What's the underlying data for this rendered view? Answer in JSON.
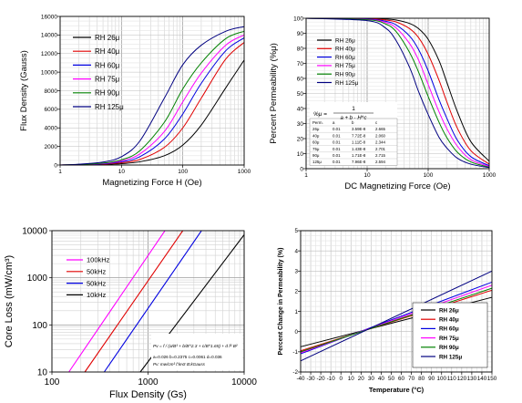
{
  "chart_data": [
    {
      "type": "line",
      "xlabel": "Magnetizing Force H (Oe)",
      "ylabel": "Flux Density (Gauss)",
      "xscale": "log",
      "xlim": [
        1,
        1000
      ],
      "ylim": [
        0,
        16000
      ],
      "xticks": [
        "1",
        "10",
        "100",
        "1000"
      ],
      "yticks": [
        "0",
        "2000",
        "4000",
        "6000",
        "8000",
        "10000",
        "12000",
        "14000",
        "16000"
      ],
      "grid": true,
      "legend_position": "top-left",
      "x": [
        1,
        2,
        5,
        10,
        20,
        50,
        100,
        200,
        500,
        1000
      ],
      "series": [
        {
          "name": "RH 26μ",
          "color": "#000000",
          "values": [
            0,
            20,
            60,
            150,
            350,
            1000,
            2150,
            4300,
            8300,
            11300
          ]
        },
        {
          "name": "RH 40μ",
          "color": "#e00000",
          "values": [
            0,
            30,
            90,
            250,
            600,
            1900,
            4000,
            7200,
            11400,
            13200
          ]
        },
        {
          "name": "RH 60μ",
          "color": "#0000e0",
          "values": [
            0,
            40,
            130,
            350,
            900,
            2800,
            5500,
            8800,
            12300,
            13700
          ]
        },
        {
          "name": "RH 75μ",
          "color": "#ff00ff",
          "values": [
            0,
            50,
            170,
            450,
            1200,
            3600,
            6800,
            9900,
            12900,
            14000
          ]
        },
        {
          "name": "RH 90μ",
          "color": "#008000",
          "values": [
            0,
            60,
            210,
            560,
            1550,
            4600,
            8200,
            11000,
            13600,
            14400
          ]
        },
        {
          "name": "RH 125μ",
          "color": "#000080",
          "values": [
            0,
            90,
            320,
            900,
            2600,
            7200,
            10800,
            12900,
            14400,
            14900
          ]
        }
      ]
    },
    {
      "type": "line",
      "xlabel": "DC Magnetizing Force (Oe)",
      "ylabel": "Percent Permeability (%μ)",
      "xscale": "log",
      "xlim": [
        1,
        1000
      ],
      "ylim": [
        0,
        100
      ],
      "xticks": [
        "1",
        "10",
        "100",
        "1000"
      ],
      "yticks": [
        "0",
        "10",
        "20",
        "30",
        "40",
        "50",
        "60",
        "70",
        "80",
        "90",
        "100"
      ],
      "grid": true,
      "legend_position": "top-left",
      "x": [
        1,
        10,
        20,
        30,
        50,
        70,
        100,
        150,
        200,
        300,
        500,
        1000
      ],
      "series": [
        {
          "name": "RH 26μ",
          "color": "#000000",
          "values": [
            100,
            99.8,
            99.5,
            98.8,
            96.5,
            93,
            86,
            72,
            58,
            38,
            18,
            5
          ]
        },
        {
          "name": "RH 40μ",
          "color": "#e00000",
          "values": [
            100,
            99.6,
            98.8,
            97.5,
            93,
            87,
            76,
            59,
            45,
            27,
            12,
            3
          ]
        },
        {
          "name": "RH 60μ",
          "color": "#0000e0",
          "values": [
            100,
            99.4,
            98,
            95.5,
            88,
            79,
            65,
            46,
            34,
            19,
            8,
            2
          ]
        },
        {
          "name": "RH 75μ",
          "color": "#ff00ff",
          "values": [
            100,
            99.2,
            97.2,
            93.5,
            83,
            72,
            56,
            38,
            27,
            15,
            6,
            1.5
          ]
        },
        {
          "name": "RH 90μ",
          "color": "#008000",
          "values": [
            100,
            99,
            96.2,
            91,
            77,
            64,
            48,
            31,
            21,
            11,
            4.5,
            1
          ]
        },
        {
          "name": "RH 125μ",
          "color": "#000080",
          "values": [
            100,
            98.4,
            93.5,
            85,
            67,
            51,
            36,
            21,
            14,
            7,
            3,
            0.7
          ]
        }
      ],
      "annotation": {
        "formula_label": "%μ = ",
        "formula_num": "1",
        "formula_den": "a + b · H^c",
        "table_headers": [
          "Perm.",
          "a",
          "b",
          "c"
        ],
        "table_rows": [
          [
            "26μ",
            "0.01",
            "3.59E-8",
            "2.665"
          ],
          [
            "40μ",
            "0.01",
            "7.72E-8",
            "2.060"
          ],
          [
            "60μ",
            "0.01",
            "1.11E-8",
            "2.344"
          ],
          [
            "75μ",
            "0.01",
            "1.43E-8",
            "2.701"
          ],
          [
            "90μ",
            "0.01",
            "1.71E-8",
            "2.715"
          ],
          [
            "125μ",
            "0.01",
            "7.96E-8",
            "2.594"
          ]
        ]
      }
    },
    {
      "type": "line",
      "xlabel": "Flux Density (Gs)",
      "ylabel": "Core Loss (mW/cm³)",
      "xscale": "log",
      "yscale": "log",
      "xlim": [
        100,
        10000
      ],
      "ylim": [
        10,
        10000
      ],
      "xticks": [
        "100",
        "1000",
        "10000"
      ],
      "yticks": [
        "10",
        "100",
        "1000",
        "10000"
      ],
      "grid": true,
      "legend_position": "top-left",
      "x": [
        100,
        10000
      ],
      "series": [
        {
          "name": "100kHz",
          "color": "#ff00ff",
          "points": [
            [
              150,
              10
            ],
            [
              1500,
              10000
            ]
          ]
        },
        {
          "name": "50kHz",
          "color": "#e00000",
          "points": [
            [
              220,
              10
            ],
            [
              2300,
              10000
            ]
          ]
        },
        {
          "name": "50kHz",
          "color": "#0000e0",
          "points": [
            [
              350,
              10
            ],
            [
              3600,
              10000
            ]
          ]
        },
        {
          "name": "10kHz",
          "color": "#000000",
          "points": [
            [
              830,
              10
            ],
            [
              10000,
              8200
            ]
          ]
        }
      ],
      "annotation": {
        "formula_pv": "Pv = f / (a/B³ + b/B^2.3 + c/B^1.65) + d f² B²",
        "coeffs": "a=0.026  b=0.2375  c=0.0061  d=0.036",
        "units": "Pv: mw/cm³  f:kHz  B:kGauss"
      }
    },
    {
      "type": "line",
      "xlabel": "Temperature (°C)",
      "ylabel": "Percent Change in Permeability (%)",
      "xlim": [
        -40,
        150
      ],
      "ylim": [
        -2,
        5
      ],
      "xticks": [
        "-40",
        "-30",
        "-20",
        "-10",
        "0",
        "10",
        "20",
        "30",
        "40",
        "50",
        "60",
        "70",
        "80",
        "90",
        "100",
        "110",
        "120",
        "130",
        "140",
        "150"
      ],
      "yticks": [
        "-2",
        "-1",
        "0",
        "1",
        "2",
        "3",
        "4",
        "5"
      ],
      "grid": true,
      "legend_position": "bottom-right",
      "x": [
        -40,
        150
      ],
      "series": [
        {
          "name": "RH 26μ",
          "color": "#000000",
          "values": [
            -0.75,
            1.7
          ]
        },
        {
          "name": "RH 40μ",
          "color": "#e00000",
          "values": [
            -0.95,
            2.05
          ]
        },
        {
          "name": "RH 60μ",
          "color": "#0000e0",
          "values": [
            -1.1,
            2.45
          ]
        },
        {
          "name": "RH 75μ",
          "color": "#ff00ff",
          "values": [
            -1.05,
            2.3
          ]
        },
        {
          "name": "RH 90μ",
          "color": "#008000",
          "values": [
            -1.0,
            2.15
          ]
        },
        {
          "name": "RH 125μ",
          "color": "#000080",
          "values": [
            -1.45,
            3.0
          ]
        }
      ]
    }
  ]
}
